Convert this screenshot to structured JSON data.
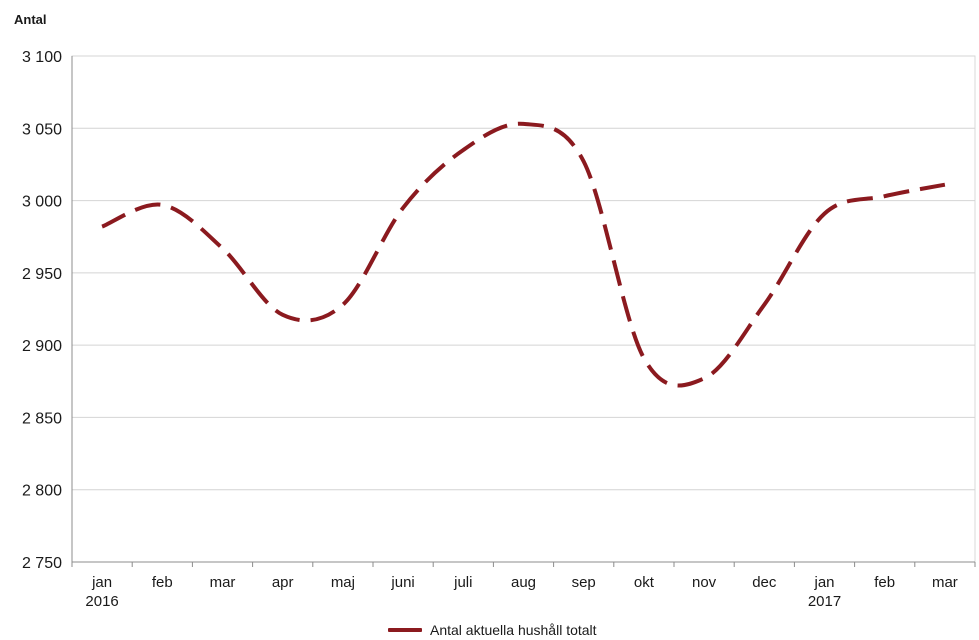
{
  "chart_data": {
    "type": "line",
    "ylabel": "Antal",
    "ylim": [
      2750,
      3100
    ],
    "yticks": [
      2750,
      2800,
      2850,
      2900,
      2950,
      3000,
      3050,
      3100
    ],
    "ytick_labels": [
      "2 750",
      "2 800",
      "2 850",
      "2 900",
      "2 950",
      "3 000",
      "3 050",
      "3 100"
    ],
    "categories": [
      "jan",
      "feb",
      "mar",
      "apr",
      "maj",
      "juni",
      "juli",
      "aug",
      "sep",
      "okt",
      "nov",
      "dec",
      "jan",
      "feb",
      "mar"
    ],
    "category_years": [
      "2016",
      "",
      "",
      "",
      "",
      "",
      "",
      "",
      "",
      "",
      "",
      "",
      "2017",
      "",
      ""
    ],
    "grid": "horizontal",
    "legend_position": "bottom-center",
    "series": [
      {
        "name": "Antal aktuella hushåll totalt",
        "color": "#8b1a1f",
        "style": "dashed",
        "values": [
          2982,
          2997,
          2967,
          2921,
          2928,
          2995,
          3035,
          3053,
          3027,
          2891,
          2877,
          2928,
          2991,
          3003,
          3011
        ]
      }
    ]
  }
}
